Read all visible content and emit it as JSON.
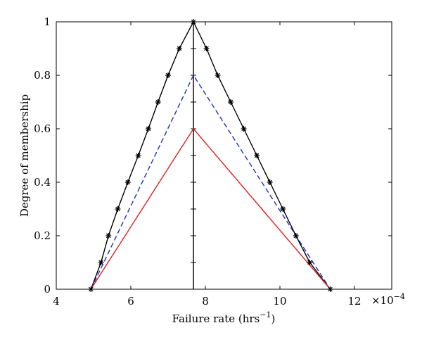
{
  "chart_data": {
    "type": "line",
    "title": "",
    "xlabel_base": "Failure rate (hrs",
    "xlabel_sup": "−1",
    "xlabel_end": ")",
    "ylabel": "Degree of membership",
    "x_multiplier_text": "×10",
    "x_multiplier_exp": "−4",
    "xlim": [
      4,
      13
    ],
    "ylim": [
      0,
      1
    ],
    "xticks": [
      4,
      6,
      8,
      10,
      12
    ],
    "yticks": [
      0,
      0.2,
      0.4,
      0.6,
      0.8,
      1
    ],
    "xtick_labels": [
      "4",
      "6",
      "8",
      "10",
      "12"
    ],
    "ytick_labels": [
      "0",
      "0.2",
      "0.4",
      "0.6",
      "0.8",
      "1"
    ],
    "grid": false,
    "vertical_line": {
      "x": 7.68,
      "minor_ticks": [
        0.1,
        0.2,
        0.3,
        0.4,
        0.5,
        0.6,
        0.7,
        0.8,
        0.9
      ]
    },
    "series": [
      {
        "style": "solid",
        "color": "#000000",
        "marker": "asterisk",
        "x": [
          4.93,
          5.2,
          5.4,
          5.65,
          5.92,
          6.2,
          6.47,
          6.73,
          7.0,
          7.3,
          7.68,
          8.03,
          8.33,
          8.68,
          9.03,
          9.38,
          9.73,
          10.08,
          10.43,
          10.8,
          11.35
        ],
        "y": [
          0,
          0.1,
          0.2,
          0.3,
          0.4,
          0.5,
          0.6,
          0.7,
          0.8,
          0.9,
          1.0,
          0.9,
          0.8,
          0.7,
          0.6,
          0.5,
          0.4,
          0.3,
          0.2,
          0.1,
          0
        ]
      },
      {
        "style": "dashed",
        "color": "#1f2fbf",
        "marker": "none",
        "x": [
          4.93,
          7.68,
          11.35
        ],
        "y": [
          0,
          0.8,
          0
        ]
      },
      {
        "style": "solid",
        "color": "#e02020",
        "marker": "none",
        "x": [
          4.93,
          7.68,
          11.35
        ],
        "y": [
          0,
          0.6,
          0
        ]
      }
    ]
  }
}
